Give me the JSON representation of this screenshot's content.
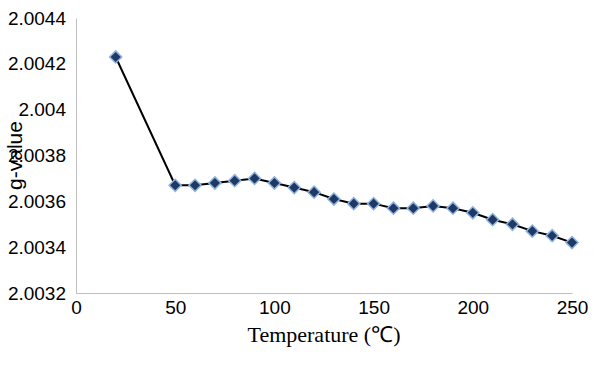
{
  "chart_data": {
    "type": "line",
    "x_label": "Temperature (℃)",
    "y_label": "g-value",
    "x": [
      20,
      50,
      60,
      70,
      80,
      90,
      100,
      110,
      120,
      130,
      140,
      150,
      160,
      170,
      180,
      190,
      200,
      210,
      220,
      230,
      240,
      250
    ],
    "values": [
      2.00423,
      2.00367,
      2.00367,
      2.00368,
      2.00369,
      2.0037,
      2.00368,
      2.00366,
      2.00364,
      2.00361,
      2.00359,
      2.00359,
      2.00357,
      2.00357,
      2.00358,
      2.00357,
      2.00355,
      2.00352,
      2.0035,
      2.00347,
      2.00345,
      2.00342
    ],
    "color": "#000000",
    "marker": "diamond",
    "xlim": [
      0,
      250
    ],
    "xticks": [
      0,
      50,
      100,
      150,
      200,
      250
    ],
    "ylim": [
      2.0032,
      2.0044
    ],
    "yticks": [
      2.0032,
      2.0034,
      2.0036,
      2.0038,
      2.004,
      2.0042,
      2.0044
    ],
    "grid": false
  }
}
